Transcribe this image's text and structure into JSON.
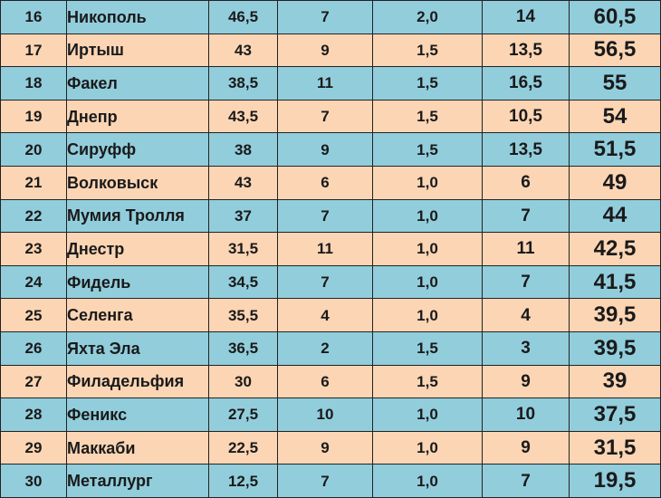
{
  "colors": {
    "row_blue": "#92cddc",
    "row_peach": "#fcd5b4",
    "border": "#222222",
    "text": "#1a1a1a"
  },
  "rows": [
    {
      "place": "16",
      "team": "Никополь",
      "a": "46,5",
      "b": "7",
      "c": "2,0",
      "d": "14",
      "total": "60,5",
      "color": "blue"
    },
    {
      "place": "17",
      "team": "Иртыш",
      "a": "43",
      "b": "9",
      "c": "1,5",
      "d": "13,5",
      "total": "56,5",
      "color": "peach"
    },
    {
      "place": "18",
      "team": "Факел",
      "a": "38,5",
      "b": "11",
      "c": "1,5",
      "d": "16,5",
      "total": "55",
      "color": "blue"
    },
    {
      "place": "19",
      "team": "Днепр",
      "a": "43,5",
      "b": "7",
      "c": "1,5",
      "d": "10,5",
      "total": "54",
      "color": "peach"
    },
    {
      "place": "20",
      "team": "Сируфф",
      "a": "38",
      "b": "9",
      "c": "1,5",
      "d": "13,5",
      "total": "51,5",
      "color": "blue"
    },
    {
      "place": "21",
      "team": "Волковыск",
      "a": "43",
      "b": "6",
      "c": "1,0",
      "d": "6",
      "total": "49",
      "color": "peach"
    },
    {
      "place": "22",
      "team": "Мумия Тролля",
      "a": "37",
      "b": "7",
      "c": "1,0",
      "d": "7",
      "total": "44",
      "color": "blue"
    },
    {
      "place": "23",
      "team": "Днестр",
      "a": "31,5",
      "b": "11",
      "c": "1,0",
      "d": "11",
      "total": "42,5",
      "color": "peach"
    },
    {
      "place": "24",
      "team": "Фидель",
      "a": "34,5",
      "b": "7",
      "c": "1,0",
      "d": "7",
      "total": "41,5",
      "color": "blue"
    },
    {
      "place": "25",
      "team": "Селенга",
      "a": "35,5",
      "b": "4",
      "c": "1,0",
      "d": "4",
      "total": "39,5",
      "color": "peach"
    },
    {
      "place": "26",
      "team": "Яхта Эла",
      "a": "36,5",
      "b": "2",
      "c": "1,5",
      "d": "3",
      "total": "39,5",
      "color": "blue"
    },
    {
      "place": "27",
      "team": "Филадельфия",
      "a": "30",
      "b": "6",
      "c": "1,5",
      "d": "9",
      "total": "39",
      "color": "peach"
    },
    {
      "place": "28",
      "team": "Феникс",
      "a": "27,5",
      "b": "10",
      "c": "1,0",
      "d": "10",
      "total": "37,5",
      "color": "blue"
    },
    {
      "place": "29",
      "team": "Маккаби",
      "a": "22,5",
      "b": "9",
      "c": "1,0",
      "d": "9",
      "total": "31,5",
      "color": "peach"
    },
    {
      "place": "30",
      "team": "Металлург",
      "a": "12,5",
      "b": "7",
      "c": "1,0",
      "d": "7",
      "total": "19,5",
      "color": "blue"
    }
  ]
}
